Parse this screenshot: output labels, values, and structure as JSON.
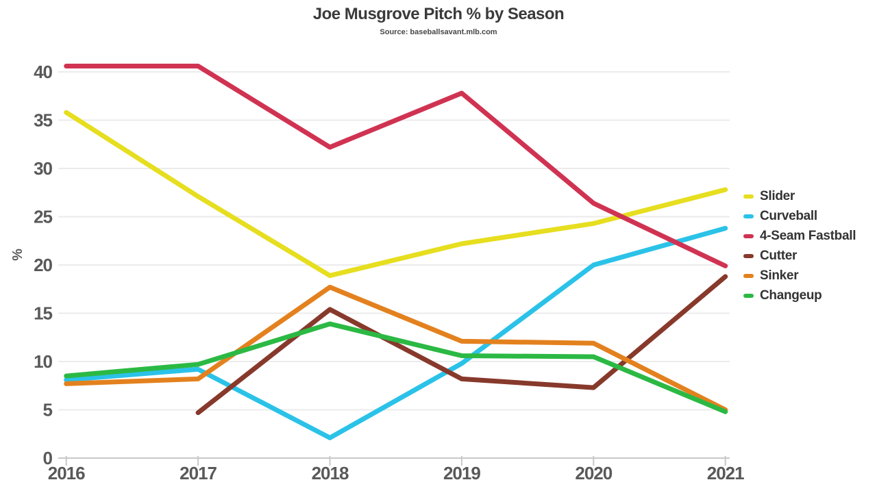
{
  "title": "Joe Musgrove Pitch % by Season",
  "subtitle": "Source: baseballsavant.mlb.com",
  "chart_data": {
    "type": "line",
    "title": "Joe Musgrove Pitch % by Season",
    "subtitle": "Source: baseballsavant.mlb.com",
    "categories": [
      "2016",
      "2017",
      "2018",
      "2019",
      "2020",
      "2021"
    ],
    "xlabel": "",
    "ylabel": "%",
    "ylim": [
      0,
      40
    ],
    "yticks": [
      0,
      5,
      10,
      15,
      20,
      25,
      30,
      35,
      40
    ],
    "grid": "horizontal",
    "legend_position": "right",
    "line_width": 7,
    "series": [
      {
        "name": "Slider",
        "color": "#e6de1f",
        "values": [
          35.8,
          27.1,
          18.9,
          22.2,
          24.3,
          27.8
        ]
      },
      {
        "name": "Curveball",
        "color": "#2bc2e8",
        "values": [
          8.1,
          9.2,
          2.1,
          9.8,
          20.0,
          23.8
        ]
      },
      {
        "name": "4-Seam Fastball",
        "color": "#d03352",
        "values": [
          40.6,
          40.6,
          32.2,
          37.8,
          26.4,
          19.9
        ]
      },
      {
        "name": "Cutter",
        "color": "#87392b",
        "values": [
          null,
          4.7,
          15.4,
          8.2,
          7.3,
          18.8
        ]
      },
      {
        "name": "Sinker",
        "color": "#e3811e",
        "values": [
          7.7,
          8.2,
          17.7,
          12.1,
          11.9,
          5.0
        ]
      },
      {
        "name": "Changeup",
        "color": "#2bb944",
        "values": [
          8.5,
          9.7,
          13.9,
          10.6,
          10.5,
          4.8
        ]
      }
    ],
    "style": {
      "background": "#ffffff",
      "grid_color": "#ebebeb",
      "axis_color": "#c8c8c8",
      "tick_color": "#c8c8c8",
      "tick_label_color": "#595959",
      "title_color": "#3a3a3a",
      "subtitle_color": "#474747",
      "legend_text_color": "#333333"
    }
  }
}
